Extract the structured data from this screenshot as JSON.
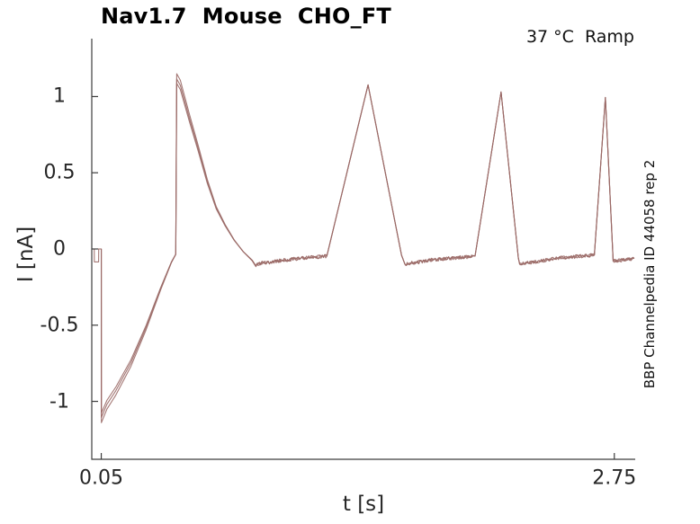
{
  "chart_data": {
    "type": "line",
    "title": "Nav1.7  Mouse  CHO_FT",
    "annotation": "37 °C  Ramp",
    "side_label": "BBP Channelpedia ID 44058 rep 2",
    "xlabel": "t [s]",
    "ylabel": "I [nA]",
    "xlim": [
      0,
      2.86
    ],
    "ylim": [
      -1.38,
      1.38
    ],
    "grid": false,
    "legend": null,
    "x_ticks": [
      {
        "value": 0.05,
        "label": "0.05"
      },
      {
        "value": 2.75,
        "label": "2.75"
      }
    ],
    "y_ticks": [
      {
        "value": 1,
        "label": "1"
      },
      {
        "value": 0.5,
        "label": "0.5"
      },
      {
        "value": 0,
        "label": "0"
      },
      {
        "value": -0.5,
        "label": "-0.5"
      },
      {
        "value": -1,
        "label": "-1"
      }
    ],
    "line_color": "#9a6966",
    "axis_color": "#3c3c3c",
    "text_color": "#262626",
    "peak_times_s": [
      0.45,
      1.45,
      2.15,
      2.7
    ],
    "peaks_nA": [
      1.15,
      1.08,
      1.03,
      0.99
    ],
    "min_nA": -1.14,
    "noise_amp_nA": 0.012,
    "early_until_s": 0.95,
    "sweeps": [
      {
        "early_scale": 1.0,
        "use_notch": true,
        "seed": 7
      },
      {
        "early_scale": 0.97,
        "use_notch": false,
        "seed": 19
      },
      {
        "early_scale": 0.945,
        "use_notch": false,
        "seed": 31
      }
    ],
    "start_flat": [
      [
        0,
        0
      ],
      [
        0.05,
        0
      ]
    ],
    "start_notch": [
      [
        0,
        0
      ],
      [
        0.013,
        0
      ],
      [
        0.0135,
        -0.085
      ],
      [
        0.036,
        -0.085
      ],
      [
        0.0365,
        0
      ],
      [
        0.05,
        0
      ]
    ],
    "segments": [
      {
        "noisy": false,
        "pts": [
          [
            0.05,
            0
          ],
          [
            0.0505,
            -1.14
          ],
          [
            0.08,
            -1.05
          ],
          [
            0.126,
            -0.96
          ],
          [
            0.206,
            -0.77
          ],
          [
            0.286,
            -0.53
          ],
          [
            0.362,
            -0.27
          ],
          [
            0.419,
            -0.09
          ],
          [
            0.442,
            -0.036
          ],
          [
            0.447,
            1.15
          ],
          [
            0.466,
            1.107
          ],
          [
            0.513,
            0.888
          ],
          [
            0.561,
            0.675
          ],
          [
            0.608,
            0.456
          ],
          [
            0.655,
            0.278
          ],
          [
            0.702,
            0.16
          ],
          [
            0.75,
            0.059
          ],
          [
            0.797,
            -0.018
          ],
          [
            0.844,
            -0.077
          ],
          [
            0.858,
            -0.105
          ]
        ]
      },
      {
        "noisy": true,
        "pts": [
          [
            0.858,
            -0.105
          ],
          [
            1.0,
            -0.075
          ],
          [
            1.1,
            -0.06
          ],
          [
            1.237,
            -0.047
          ]
        ]
      },
      {
        "noisy": false,
        "pts": [
          [
            1.237,
            -0.047
          ],
          [
            1.454,
            1.077
          ],
          [
            1.63,
            -0.04
          ],
          [
            1.648,
            -0.1
          ]
        ]
      },
      {
        "noisy": true,
        "pts": [
          [
            1.648,
            -0.1
          ],
          [
            1.8,
            -0.07
          ],
          [
            2.017,
            -0.047
          ]
        ]
      },
      {
        "noisy": false,
        "pts": [
          [
            2.017,
            -0.047
          ],
          [
            2.154,
            1.03
          ],
          [
            2.245,
            -0.06
          ],
          [
            2.252,
            -0.1
          ]
        ]
      },
      {
        "noisy": true,
        "pts": [
          [
            2.252,
            -0.1
          ],
          [
            2.45,
            -0.06
          ],
          [
            2.645,
            -0.04
          ]
        ]
      },
      {
        "noisy": false,
        "pts": [
          [
            2.645,
            -0.04
          ],
          [
            2.703,
            0.994
          ],
          [
            2.744,
            -0.08
          ]
        ]
      },
      {
        "noisy": true,
        "pts": [
          [
            2.744,
            -0.08
          ],
          [
            2.855,
            -0.062
          ]
        ]
      }
    ]
  }
}
